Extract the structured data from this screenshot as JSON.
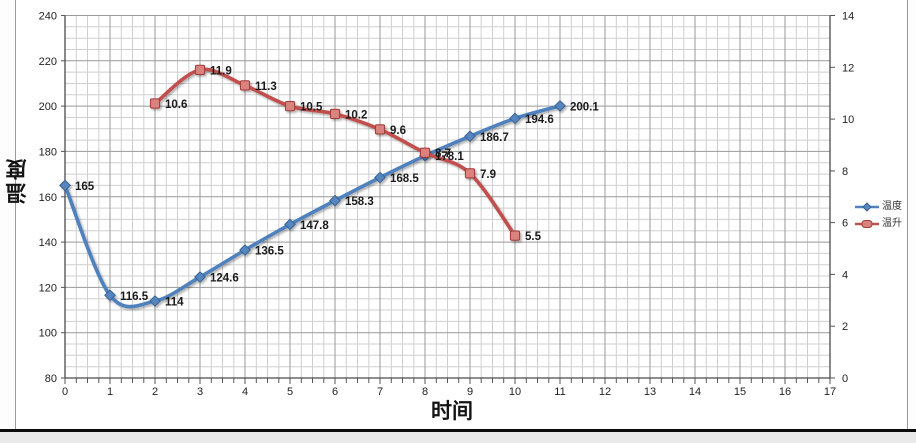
{
  "chart_data": {
    "type": "line",
    "title": "",
    "smooth_lines": true,
    "grid": "major+minor",
    "legend_position": "right",
    "x_axis": {
      "title": "时间",
      "min": 0,
      "max": 17,
      "major_step": 1,
      "minor_step": 0.25,
      "ticks": [
        0,
        1,
        2,
        3,
        4,
        5,
        6,
        7,
        8,
        9,
        10,
        11,
        12,
        13,
        14,
        15,
        16,
        17
      ]
    },
    "y_axis_left": {
      "title": "温度",
      "min": 80,
      "max": 240,
      "major_step": 20,
      "minor_step": 5,
      "ticks": [
        80,
        100,
        120,
        140,
        160,
        180,
        200,
        220,
        240
      ]
    },
    "y_axis_right": {
      "title": "",
      "min": 0,
      "max": 14,
      "major_step": 2,
      "minor_step": 2,
      "ticks": [
        0,
        2,
        4,
        6,
        8,
        10,
        12,
        14
      ]
    },
    "series": [
      {
        "name": "温度",
        "axis": "left",
        "marker": "diamond",
        "colors": {
          "line": "#4f81bd",
          "marker_fill": "#5586c0",
          "marker_stroke": "#3a628f"
        },
        "x": [
          0,
          1,
          2,
          3,
          4,
          5,
          6,
          7,
          8,
          9,
          10,
          11
        ],
        "values": [
          165,
          116.5,
          114,
          124.6,
          136.5,
          147.8,
          158.3,
          168.5,
          178.1,
          186.7,
          194.6,
          200.1
        ]
      },
      {
        "name": "温升",
        "axis": "right",
        "marker": "square",
        "colors": {
          "line": "#c0504d",
          "marker_fill": "#d9827e",
          "marker_stroke": "#a33936"
        },
        "x": [
          2,
          3,
          4,
          5,
          6,
          7,
          8,
          9,
          10
        ],
        "values": [
          10.6,
          11.9,
          11.3,
          10.5,
          10.2,
          9.6,
          8.7,
          7.9,
          5.5
        ]
      }
    ],
    "style": {
      "grid_minor_color": "#cfcfcf",
      "grid_major_color": "#999999",
      "axis_line_color": "#4a4a4a",
      "tick_label_color": "#222222",
      "data_label_color": "#1a1a1a"
    }
  }
}
